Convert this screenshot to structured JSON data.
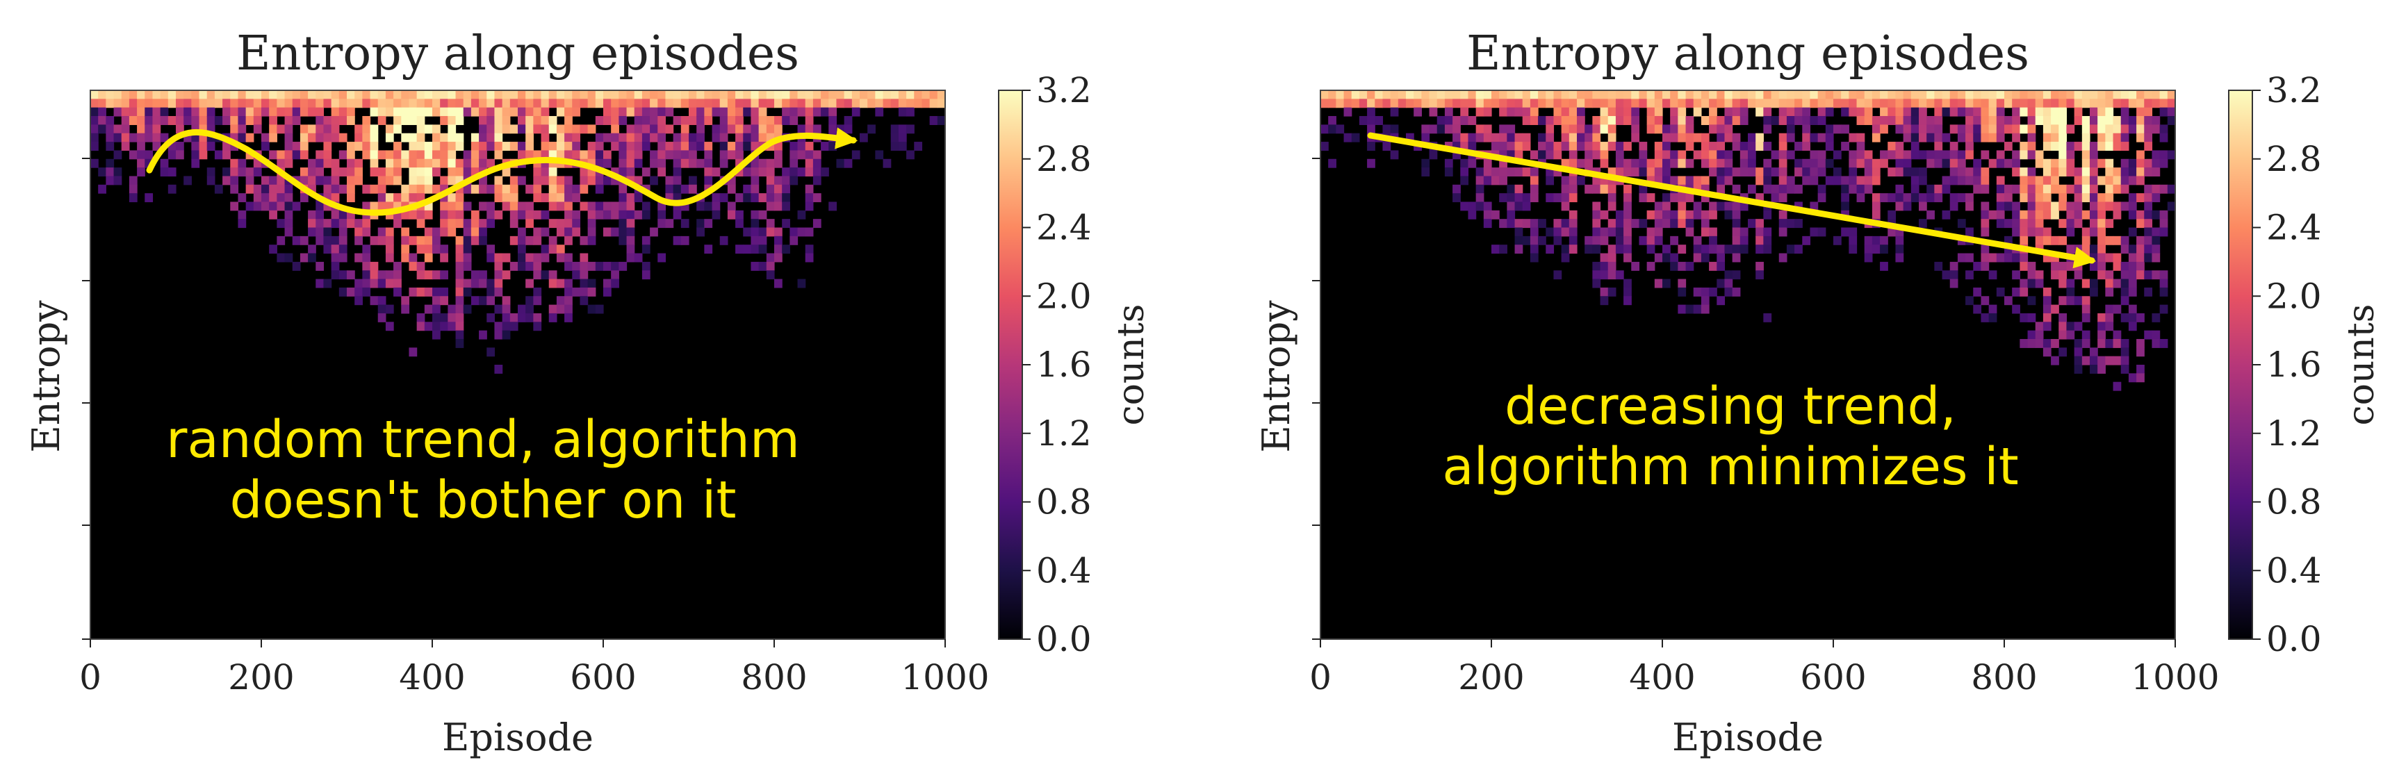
{
  "figure": {
    "annotation_color": "#ffea00",
    "background": "#000000",
    "colormap": [
      "#000004",
      "#1d1147",
      "#51127c",
      "#832681",
      "#b73779",
      "#e75263",
      "#fc8961",
      "#fec488",
      "#fcfdbf"
    ]
  },
  "chart_data": [
    {
      "type": "heatmap",
      "title": "Entropy along episodes",
      "xlabel": "Episode",
      "ylabel": "Entropy",
      "xlim": [
        0,
        1000
      ],
      "xticks": [
        "0",
        "200",
        "400",
        "600",
        "800",
        "1000"
      ],
      "ylim": [
        0,
        1
      ],
      "colorbar": {
        "label": "counts",
        "range": [
          0.0,
          3.2
        ],
        "ticks": [
          "0.0",
          "0.4",
          "0.8",
          "1.2",
          "1.6",
          "2.0",
          "2.4",
          "2.8",
          "3.2"
        ]
      },
      "density_profile": {
        "episode": [
          0,
          50,
          100,
          150,
          200,
          250,
          300,
          350,
          400,
          450,
          500,
          550,
          600,
          650,
          700,
          750,
          800,
          850,
          900,
          950,
          1000
        ],
        "lowest_entropy_reached": [
          0.82,
          0.8,
          0.8,
          0.78,
          0.72,
          0.66,
          0.62,
          0.57,
          0.53,
          0.54,
          0.55,
          0.58,
          0.6,
          0.66,
          0.72,
          0.7,
          0.66,
          0.7,
          0.9,
          0.84,
          0.9
        ],
        "intensity": [
          0.5,
          0.55,
          0.6,
          0.6,
          0.65,
          0.75,
          0.8,
          0.9,
          0.95,
          0.95,
          0.9,
          0.8,
          0.6,
          0.55,
          0.6,
          0.65,
          0.6,
          0.4,
          0.15,
          0.08,
          0.08
        ]
      },
      "annotation": {
        "text_lines": [
          "random trend, algorithm",
          "doesn't bother on it"
        ],
        "shape": "wavy arrow"
      }
    },
    {
      "type": "heatmap",
      "title": "Entropy along episodes",
      "xlabel": "Episode",
      "ylabel": "Entropy",
      "xlim": [
        0,
        1000
      ],
      "xticks": [
        "0",
        "200",
        "400",
        "600",
        "800",
        "1000"
      ],
      "ylim": [
        0,
        1
      ],
      "colorbar": {
        "label": "counts",
        "range": [
          0.0,
          3.2
        ],
        "ticks": [
          "0.0",
          "0.4",
          "0.8",
          "1.2",
          "1.6",
          "2.0",
          "2.4",
          "2.8",
          "3.2"
        ]
      },
      "density_profile": {
        "episode": [
          0,
          50,
          100,
          150,
          200,
          250,
          300,
          350,
          400,
          450,
          500,
          550,
          600,
          650,
          700,
          750,
          800,
          850,
          900,
          950,
          1000
        ],
        "lowest_entropy_reached": [
          0.88,
          0.85,
          0.86,
          0.82,
          0.7,
          0.68,
          0.65,
          0.62,
          0.6,
          0.6,
          0.64,
          0.68,
          0.72,
          0.66,
          0.7,
          0.62,
          0.55,
          0.5,
          0.48,
          0.45,
          0.55
        ],
        "intensity": [
          0.3,
          0.3,
          0.25,
          0.4,
          0.55,
          0.65,
          0.7,
          0.7,
          0.7,
          0.8,
          0.8,
          0.4,
          0.35,
          0.6,
          0.35,
          0.55,
          0.7,
          0.8,
          0.85,
          0.75,
          0.15
        ]
      },
      "annotation": {
        "text_lines": [
          "decreasing trend,",
          "algorithm minimizes it"
        ],
        "shape": "straight arrow"
      }
    }
  ]
}
